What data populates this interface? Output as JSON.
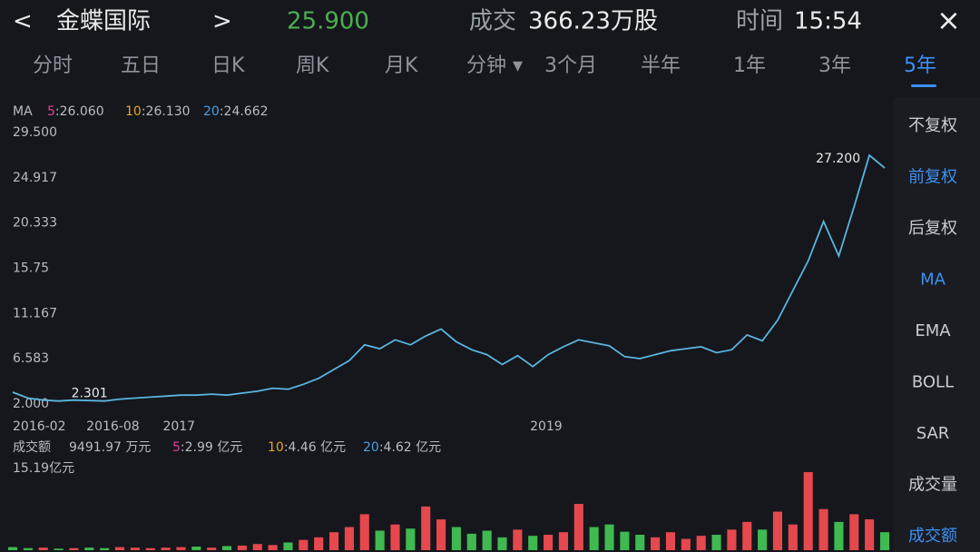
{
  "header": {
    "back": "<",
    "name": "金蝶国际",
    "next": ">",
    "price": "25.900",
    "volume_label": "成交",
    "volume": "366.23万股",
    "time_label": "时间",
    "time": "15:54",
    "close": "×"
  },
  "tabs": [
    {
      "label": "分时"
    },
    {
      "label": "五日"
    },
    {
      "label": "日K"
    },
    {
      "label": "周K"
    },
    {
      "label": "月K"
    },
    {
      "label": "分钟 ▾"
    },
    {
      "label": "3个月"
    },
    {
      "label": "半年"
    },
    {
      "label": "1年"
    },
    {
      "label": "3年"
    },
    {
      "label": "5年",
      "active": true
    }
  ],
  "side_menu": [
    {
      "label": "不复权"
    },
    {
      "label": "前复权",
      "active": true
    },
    {
      "label": "后复权"
    },
    {
      "label": "MA",
      "active": true
    },
    {
      "label": "EMA"
    },
    {
      "label": "BOLL"
    },
    {
      "label": "SAR"
    },
    {
      "label": "成交量"
    },
    {
      "label": "成交额",
      "active": true
    }
  ],
  "ma_legend": {
    "label": "MA",
    "items": [
      {
        "name": "5",
        "value": ":26.060",
        "color": "#e0409a"
      },
      {
        "name": "10",
        "value": ":26.130",
        "color": "#e5a530"
      },
      {
        "name": "20",
        "value": ":24.662",
        "color": "#4a9fe0"
      }
    ]
  },
  "volume_legend": {
    "label": "成交额",
    "value": "9491.97 万元",
    "items": [
      {
        "name": "5",
        "value": ":2.99 亿元",
        "color": "#e0409a"
      },
      {
        "name": "10",
        "value": ":4.46 亿元",
        "color": "#e5a530"
      },
      {
        "name": "20",
        "value": ":4.62 亿元",
        "color": "#4a9fe0"
      }
    ]
  },
  "chart_data": [
    {
      "type": "line",
      "color": "#5ab4e0",
      "categories": [
        "2016-02",
        null,
        null,
        null,
        null,
        null,
        "2016-08",
        null,
        null,
        null,
        null,
        "2017",
        null,
        null,
        null,
        null,
        null,
        null,
        null,
        null,
        null,
        null,
        null,
        null,
        null,
        null,
        null,
        null,
        null,
        null,
        null,
        null,
        null,
        null,
        null,
        "2019",
        null,
        null,
        null,
        null,
        null,
        null,
        null,
        null,
        null,
        null,
        null,
        null,
        null,
        null,
        null,
        null,
        null,
        null,
        null,
        null,
        null,
        null
      ],
      "values": [
        3.2,
        2.6,
        2.4,
        2.3,
        2.4,
        2.35,
        2.301,
        2.5,
        2.6,
        2.7,
        2.8,
        2.9,
        2.9,
        3.0,
        2.9,
        3.1,
        3.3,
        3.6,
        3.5,
        4.0,
        4.6,
        5.5,
        6.4,
        8.0,
        7.6,
        8.5,
        8.0,
        8.9,
        9.6,
        8.3,
        7.5,
        7.0,
        6.0,
        6.9,
        5.8,
        7.0,
        7.8,
        8.5,
        8.2,
        7.9,
        6.8,
        6.6,
        7.0,
        7.4,
        7.6,
        7.8,
        7.2,
        7.5,
        9.0,
        8.4,
        10.5,
        13.5,
        16.5,
        20.5,
        17.0,
        22.0,
        27.2,
        25.9
      ],
      "annotations": [
        "2.301",
        "27.200"
      ],
      "ylim": [
        2,
        29.5
      ],
      "yticks": [
        {
          "value": 2,
          "label": "2.000"
        },
        6.583,
        11.167,
        15.75,
        20.333,
        24.917,
        {
          "value": 29.5,
          "label": "29.500"
        }
      ]
    },
    {
      "type": "bar",
      "values": [
        0.6,
        0.4,
        0.5,
        0.3,
        0.4,
        0.5,
        0.4,
        0.6,
        0.5,
        0.4,
        0.5,
        0.6,
        0.7,
        0.5,
        0.8,
        0.9,
        1.2,
        1.0,
        1.5,
        2.0,
        2.5,
        3.5,
        4.5,
        7.0,
        3.8,
        5.0,
        4.2,
        8.5,
        6.0,
        4.5,
        3.2,
        3.8,
        2.5,
        4.0,
        2.8,
        3.0,
        3.5,
        9.0,
        4.5,
        5.0,
        3.6,
        3.0,
        2.5,
        3.5,
        2.2,
        2.8,
        3.0,
        4.0,
        5.5,
        4.0,
        7.5,
        5.0,
        15.19,
        8.0,
        5.5,
        7.0,
        6.0,
        3.5
      ],
      "colors": [
        "#3fb950",
        "#3fb950",
        "#e5484d",
        "#3fb950",
        "#e5484d",
        "#3fb950",
        "#3fb950",
        "#e5484d",
        "#e5484d",
        "#e5484d",
        "#e5484d",
        "#e5484d",
        "#3fb950",
        "#e5484d",
        "#3fb950",
        "#e5484d",
        "#e5484d",
        "#e5484d",
        "#3fb950",
        "#e5484d",
        "#e5484d",
        "#e5484d",
        "#e5484d",
        "#e5484d",
        "#3fb950",
        "#e5484d",
        "#3fb950",
        "#e5484d",
        "#e5484d",
        "#3fb950",
        "#3fb950",
        "#3fb950",
        "#3fb950",
        "#e5484d",
        "#3fb950",
        "#e5484d",
        "#e5484d",
        "#e5484d",
        "#3fb950",
        "#3fb950",
        "#3fb950",
        "#3fb950",
        "#e5484d",
        "#e5484d",
        "#e5484d",
        "#e5484d",
        "#3fb950",
        "#e5484d",
        "#e5484d",
        "#3fb950",
        "#e5484d",
        "#e5484d",
        "#e5484d",
        "#e5484d",
        "#3fb950",
        "#e5484d",
        "#e5484d",
        "#3fb950"
      ],
      "ylim": [
        0,
        15.19
      ],
      "yticks": [
        {
          "value": 15.19,
          "label": "15.19亿元"
        }
      ]
    }
  ]
}
